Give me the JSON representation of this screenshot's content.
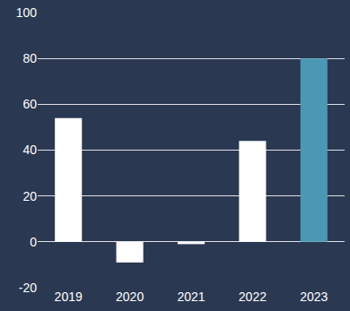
{
  "chart_data": {
    "type": "bar",
    "categories": [
      "2019",
      "2020",
      "2021",
      "2022",
      "2023"
    ],
    "values": [
      54,
      -9,
      -1,
      44,
      80
    ],
    "colors": [
      "#ffffff",
      "#ffffff",
      "#ffffff",
      "#ffffff",
      "#4a98b4"
    ],
    "ylim": [
      -20,
      100
    ],
    "yticks": [
      -20,
      0,
      20,
      40,
      60,
      80,
      100
    ],
    "grid": true
  }
}
